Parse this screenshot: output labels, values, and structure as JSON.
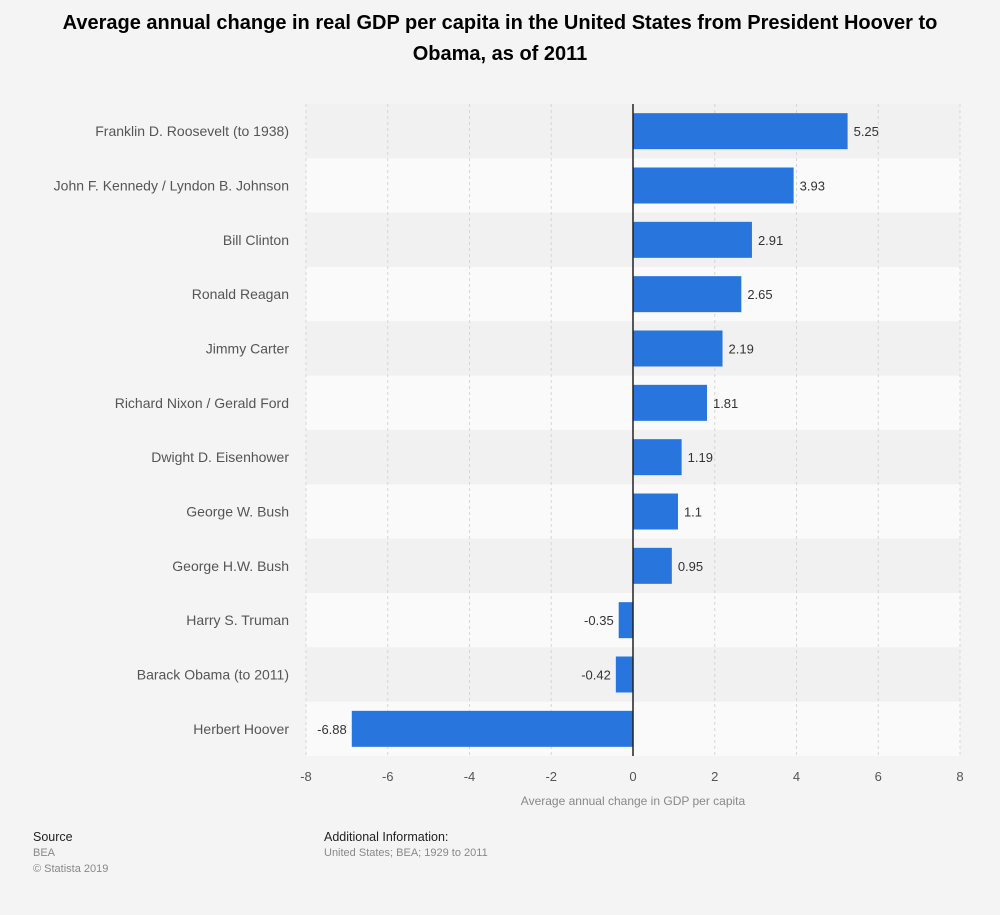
{
  "title": "Average annual change in real GDP per capita in the United States from President Hoover to Obama, as of 2011",
  "chart_data": {
    "type": "bar",
    "orientation": "horizontal",
    "categories": [
      "Franklin D. Roosevelt (to 1938)",
      "John F. Kennedy / Lyndon B. Johnson",
      "Bill Clinton",
      "Ronald Reagan",
      "Jimmy Carter",
      "Richard Nixon / Gerald Ford",
      "Dwight D. Eisenhower",
      "George W. Bush",
      "George H.W. Bush",
      "Harry S. Truman",
      "Barack Obama (to 2011)",
      "Herbert Hoover"
    ],
    "values": [
      5.25,
      3.93,
      2.91,
      2.65,
      2.19,
      1.81,
      1.19,
      1.1,
      0.95,
      -0.35,
      -0.42,
      -6.88
    ],
    "value_labels": [
      "5.25",
      "3.93",
      "2.91",
      "2.65",
      "2.19",
      "1.81",
      "1.19",
      "1.1",
      "0.95",
      "-0.35",
      "-0.42",
      "-6.88"
    ],
    "xlabel": "Average annual change in GDP per capita",
    "ylabel": "",
    "xlim": [
      -8,
      8
    ],
    "xticks": [
      -8,
      -6,
      -4,
      -2,
      0,
      2,
      4,
      6,
      8
    ],
    "grid": true,
    "bar_color": "#2876dd"
  },
  "footer": {
    "source_heading": "Source",
    "source_lines": [
      "BEA",
      "© Statista 2019"
    ],
    "info_heading": "Additional Information:",
    "info_text": "United States; BEA; 1929 to 2011"
  }
}
